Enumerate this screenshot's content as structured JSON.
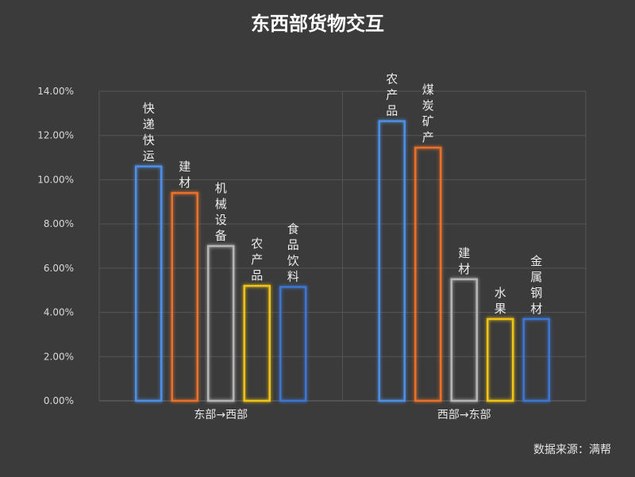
{
  "source_note": "数据来源：满帮",
  "chart_data": {
    "type": "bar",
    "title": "东西部货物交互",
    "ylim": [
      0,
      14
    ],
    "ytick_labels": [
      "0.00%",
      "2.00%",
      "4.00%",
      "6.00%",
      "8.00%",
      "10.00%",
      "12.00%",
      "14.00%"
    ],
    "grid": true,
    "groups": [
      {
        "name": "东部→西部",
        "bars": [
          {
            "label": "快递快运",
            "value": 10.6,
            "color": "#4d8fe3"
          },
          {
            "label": "建材",
            "value": 9.4,
            "color": "#e8712b"
          },
          {
            "label": "机械设备",
            "value": 7.0,
            "color": "#b5b5b5"
          },
          {
            "label": "农产品",
            "value": 5.2,
            "color": "#f0c419"
          },
          {
            "label": "食品饮料",
            "value": 5.15,
            "color": "#3c76d1"
          }
        ]
      },
      {
        "name": "西部→东部",
        "bars": [
          {
            "label": "农产品",
            "value": 12.65,
            "color": "#4d8fe3"
          },
          {
            "label": "煤炭矿产",
            "value": 11.45,
            "color": "#e8712b"
          },
          {
            "label": "建材",
            "value": 5.5,
            "color": "#b5b5b5"
          },
          {
            "label": "水果",
            "value": 3.7,
            "color": "#f0c419"
          },
          {
            "label": "金属钢材",
            "value": 3.7,
            "color": "#3c76d1"
          }
        ]
      }
    ]
  }
}
